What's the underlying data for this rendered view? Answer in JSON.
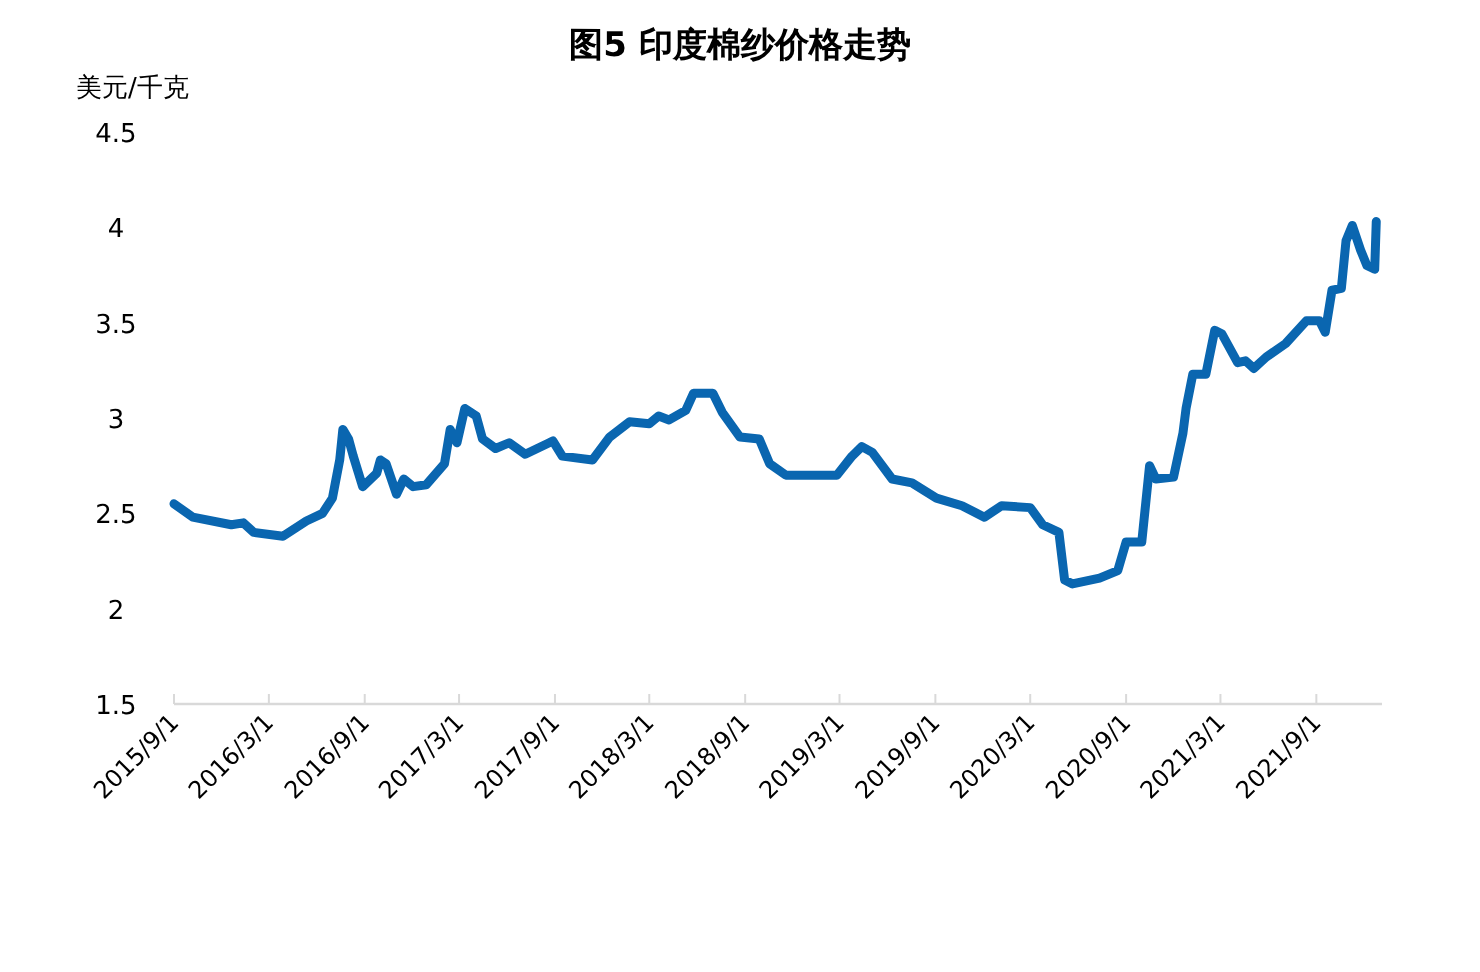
{
  "chart_data": {
    "type": "line",
    "title": "图5  印度棉纱价格走势",
    "ylabel": "美元/千克",
    "x": [
      "2015-09-01",
      "2015-10-07",
      "2015-12-20",
      "2016-01-12",
      "2016-02-01",
      "2016-03-28",
      "2016-05-12",
      "2016-06-12",
      "2016-07-01",
      "2016-07-15",
      "2016-07-21",
      "2016-08-01",
      "2016-08-10",
      "2016-08-28",
      "2016-09-24",
      "2016-10-01",
      "2016-10-12",
      "2016-11-01",
      "2016-11-15",
      "2016-12-03",
      "2016-12-28",
      "2017-02-01",
      "2017-02-12",
      "2017-02-25",
      "2017-03-12",
      "2017-04-03",
      "2017-04-15",
      "2017-05-10",
      "2017-06-05",
      "2017-07-06",
      "2017-08-21",
      "2017-08-28",
      "2017-09-15",
      "2017-11-12",
      "2017-12-15",
      "2018-01-22",
      "2018-03-01",
      "2018-03-19",
      "2018-04-08",
      "2018-05-10",
      "2018-05-25",
      "2018-07-01",
      "2018-07-19",
      "2018-08-22",
      "2018-09-28",
      "2018-10-18",
      "2018-11-18",
      "2019-01-03",
      "2019-02-24",
      "2019-03-25",
      "2019-04-13",
      "2019-05-03",
      "2019-06-10",
      "2019-07-18",
      "2019-09-03",
      "2019-10-22",
      "2019-12-04",
      "2020-01-06",
      "2020-03-01",
      "2020-03-25",
      "2020-04-25",
      "2020-05-06",
      "2020-05-21",
      "2020-07-12",
      "2020-08-16",
      "2020-09-01",
      "2020-10-01",
      "2020-10-16",
      "2020-10-28",
      "2020-12-01",
      "2020-12-19",
      "2020-12-25",
      "2021-01-07",
      "2021-02-01",
      "2021-02-18",
      "2021-03-04",
      "2021-04-03",
      "2021-04-18",
      "2021-05-04",
      "2021-05-28",
      "2021-07-04",
      "2021-08-13",
      "2021-09-07",
      "2021-09-18",
      "2021-10-01",
      "2021-10-19",
      "2021-10-28",
      "2021-11-09",
      "2021-11-25",
      "2021-12-07",
      "2021-12-22",
      "2021-12-25"
    ],
    "series": [
      {
        "color": "#0a66b0",
        "values": [
          2.55,
          2.48,
          2.44,
          2.45,
          2.4,
          2.38,
          2.46,
          2.5,
          2.58,
          2.78,
          2.94,
          2.89,
          2.8,
          2.64,
          2.71,
          2.78,
          2.76,
          2.6,
          2.68,
          2.64,
          2.65,
          2.76,
          2.94,
          2.87,
          3.05,
          3.01,
          2.89,
          2.84,
          2.87,
          2.81,
          2.87,
          2.88,
          2.8,
          2.78,
          2.9,
          2.98,
          2.97,
          3.01,
          2.99,
          3.04,
          3.13,
          3.13,
          3.03,
          2.9,
          2.89,
          2.76,
          2.7,
          2.7,
          2.7,
          2.8,
          2.85,
          2.82,
          2.68,
          2.66,
          2.58,
          2.54,
          2.48,
          2.54,
          2.53,
          2.44,
          2.4,
          2.15,
          2.13,
          2.16,
          2.2,
          2.35,
          2.35,
          2.75,
          2.68,
          2.69,
          2.92,
          3.05,
          3.23,
          3.23,
          3.46,
          3.44,
          3.29,
          3.3,
          3.26,
          3.32,
          3.39,
          3.51,
          3.51,
          3.45,
          3.67,
          3.68,
          3.93,
          4.01,
          3.88,
          3.8,
          3.78,
          4.03
        ]
      }
    ],
    "xlim": [
      "2015-09-01",
      "2022-01-05"
    ],
    "xticks": [
      {
        "value": "2015-09-01",
        "label": "2015/9/1"
      },
      {
        "value": "2016-03-01",
        "label": "2016/3/1"
      },
      {
        "value": "2016-09-01",
        "label": "2016/9/1"
      },
      {
        "value": "2017-03-01",
        "label": "2017/3/1"
      },
      {
        "value": "2017-09-01",
        "label": "2017/9/1"
      },
      {
        "value": "2018-03-01",
        "label": "2018/3/1"
      },
      {
        "value": "2018-09-01",
        "label": "2018/9/1"
      },
      {
        "value": "2019-03-01",
        "label": "2019/3/1"
      },
      {
        "value": "2019-09-01",
        "label": "2019/9/1"
      },
      {
        "value": "2020-03-01",
        "label": "2020/3/1"
      },
      {
        "value": "2020-09-01",
        "label": "2020/9/1"
      },
      {
        "value": "2021-03-01",
        "label": "2021/3/1"
      },
      {
        "value": "2021-09-01",
        "label": "2021/9/1"
      }
    ],
    "ylim": [
      1.5,
      4.5
    ],
    "yticks": [
      1.5,
      2,
      2.5,
      3,
      3.5,
      4,
      4.5
    ],
    "grid": false,
    "marker": "none",
    "line_style": "solid"
  }
}
